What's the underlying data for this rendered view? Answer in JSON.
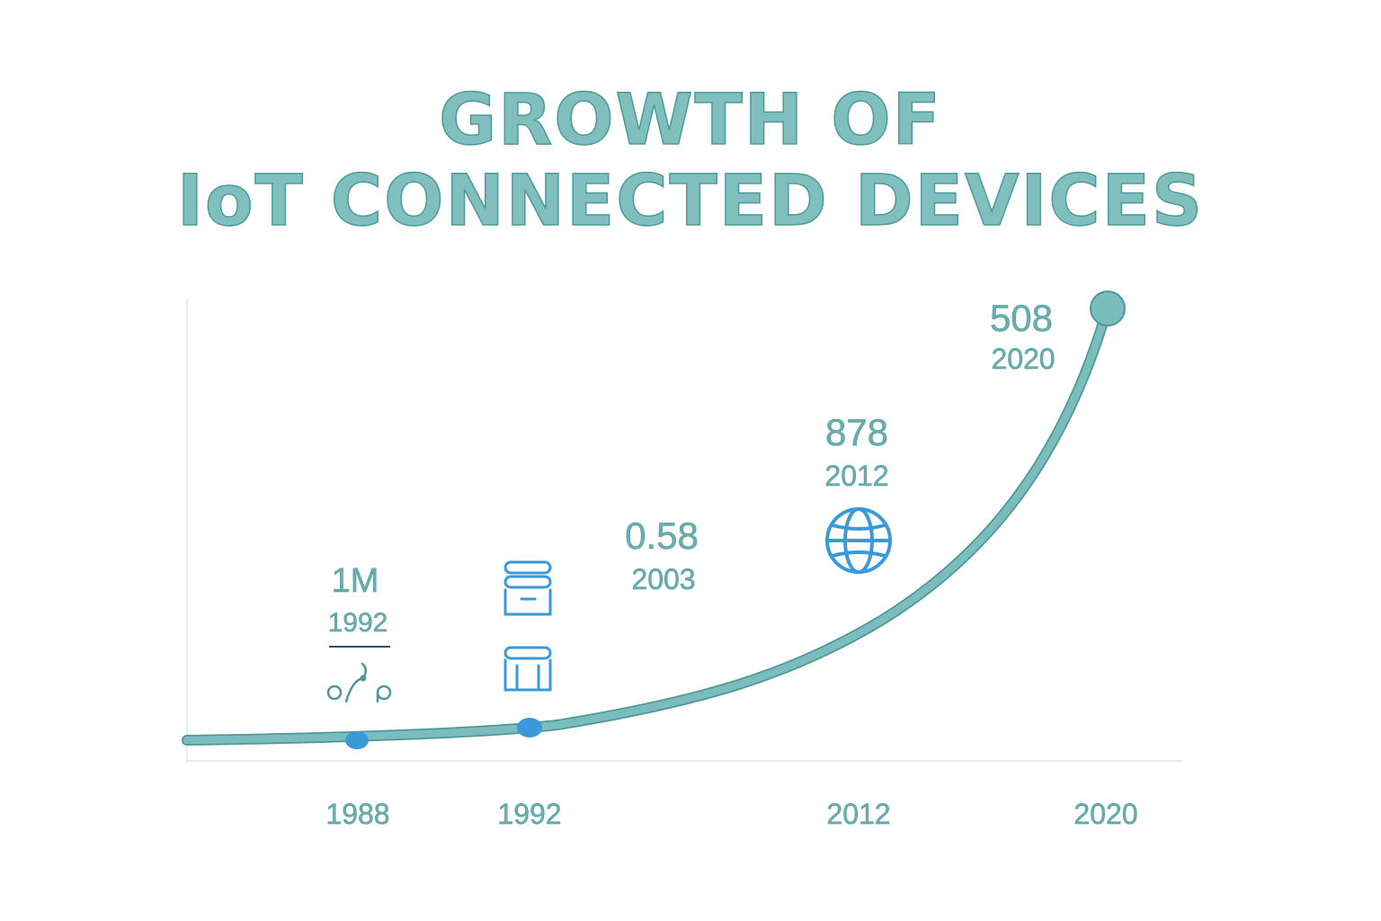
{
  "title_lines": [
    "GROWTH OF",
    "IoT CONNECTED DEVICES"
  ],
  "colors": {
    "curve": "#7bbdbd",
    "curve_edge": "#4e9898",
    "accent": "#3a9ad9",
    "text": "#6aaeae",
    "axis": "#dce7ea",
    "underline": "#2f4f6a"
  },
  "chart_data": {
    "type": "line",
    "title": "GROWTH OF IoT CONNECTED DEVICES",
    "x_ticks": [
      "1988",
      "1992",
      "2012",
      "2020"
    ],
    "annotations": [
      {
        "value": "1M",
        "year": "1992",
        "icon": "sensor-nodes-icon"
      },
      {
        "value": "",
        "year": "",
        "icon": "server-stack-icon"
      },
      {
        "value": "0.58",
        "year": "2003",
        "icon": ""
      },
      {
        "value": "878",
        "year": "2012",
        "icon": "globe-icon"
      },
      {
        "value": "508",
        "year": "2020",
        "icon": ""
      }
    ],
    "markers": [
      {
        "x": "1988",
        "style": "accent-dot"
      },
      {
        "x": "1992",
        "style": "accent-dot"
      },
      {
        "x": "2020",
        "style": "end-dot"
      }
    ],
    "grid": false,
    "legend": "none"
  }
}
